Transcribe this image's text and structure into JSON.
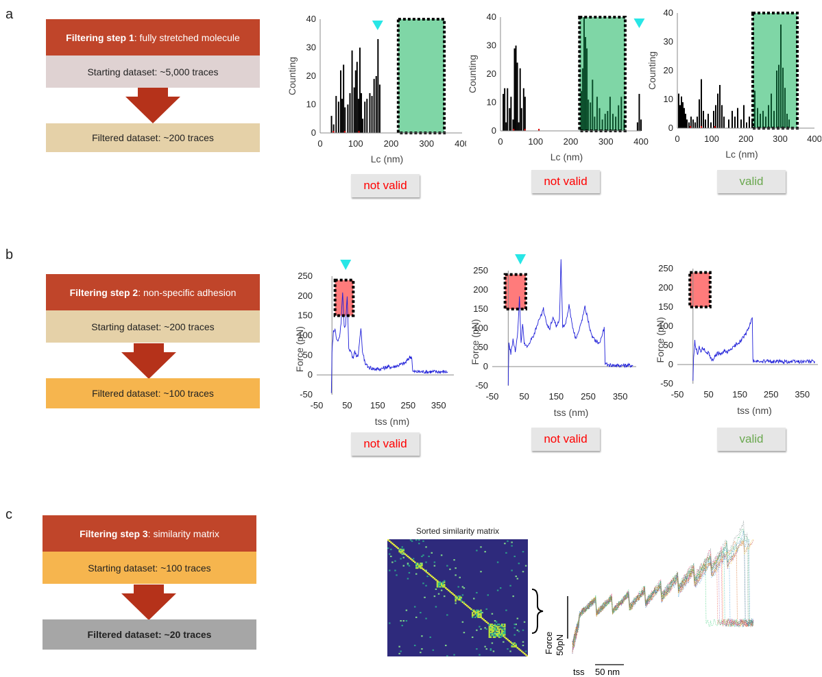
{
  "panels": {
    "a": "a",
    "b": "b",
    "c": "c"
  },
  "step1": {
    "title_bold": "Filtering step 1",
    "title_rest": ": fully stretched molecule",
    "starting": "Starting dataset: ~5,000 traces",
    "filtered": "Filtered dataset: ~200 traces"
  },
  "step2": {
    "title_bold": "Filtering step 2",
    "title_rest": ": non-specific adhesion",
    "starting": "Starting dataset: ~200 traces",
    "filtered": "Filtered dataset: ~100 traces"
  },
  "step3": {
    "title_bold": "Filtering step 3",
    "title_rest": ": similarity matrix",
    "starting": "Starting dataset: ~100 traces",
    "filtered": "Filtered dataset: ~20 traces"
  },
  "verdicts": {
    "a1": "not valid",
    "a2": "not valid",
    "a3": "valid",
    "b1": "not valid",
    "b2": "not valid",
    "b3": "valid"
  },
  "colors": {
    "title_box": "#c0452a",
    "step1_start": "#dfd2d2",
    "step1_filtered": "#e5d1a8",
    "step2_start": "#e5d1a8",
    "step2_filtered": "#f6b54e",
    "step3_start": "#f6b54e",
    "step3_filtered": "#a6a6a6",
    "arrow": "#b5321a",
    "valid": "#6aa84f",
    "not_valid": "#ff0000",
    "green_window": "#7fd6a6",
    "red_window": "#ff7b7b",
    "marker": "#28e6e6",
    "trace": "#1d1dd8"
  },
  "hist_axes": {
    "xlabel": "Lc (nm)",
    "ylabel": "Counting",
    "yticks": [
      "0",
      "10",
      "20",
      "30",
      "40"
    ],
    "xticks": [
      "0",
      "100",
      "200",
      "300",
      "400"
    ]
  },
  "force_axes": {
    "xlabel": "tss (nm)",
    "ylabel": "Force (pN)",
    "yticks": [
      "-50",
      "0",
      "50",
      "100",
      "150",
      "200",
      "250"
    ],
    "xticks": [
      "-50",
      "50",
      "150",
      "250",
      "350"
    ]
  },
  "matrix": {
    "title": "Sorted similarity matrix"
  },
  "overlay": {
    "force_label": "Force",
    "force_scale": "50pN",
    "tss_label": "tss",
    "tss_scale": "50 nm"
  },
  "chart_data": [
    {
      "type": "bar",
      "id": "a1",
      "xlabel": "Lc (nm)",
      "ylabel": "Counting",
      "xlim": [
        0,
        400
      ],
      "ylim": [
        0,
        40
      ],
      "highlight_window": [
        220,
        350
      ],
      "marker_x": 162,
      "verdict": "not valid",
      "x": [
        32,
        38,
        45,
        52,
        58,
        62,
        66,
        70,
        78,
        84,
        90,
        96,
        100,
        104,
        108,
        112,
        116,
        120,
        126,
        132,
        140,
        146,
        152,
        158,
        163,
        168
      ],
      "values": [
        6,
        3,
        13,
        11,
        22,
        12,
        24,
        9,
        10,
        14,
        29,
        16,
        22,
        25,
        12,
        30,
        14,
        5,
        11,
        12,
        14,
        13,
        19,
        20,
        33,
        17
      ]
    },
    {
      "type": "bar",
      "id": "a2",
      "xlabel": "Lc (nm)",
      "ylabel": "Counting",
      "xlim": [
        0,
        400
      ],
      "ylim": [
        0,
        40
      ],
      "highlight_window": [
        225,
        355
      ],
      "marker_x": 395,
      "verdict": "not valid",
      "x": [
        8,
        12,
        16,
        20,
        26,
        30,
        36,
        40,
        44,
        48,
        52,
        56,
        60,
        66,
        70,
        230,
        234,
        238,
        242,
        246,
        250,
        256,
        262,
        268,
        275,
        282,
        290,
        298,
        305,
        312,
        320,
        328,
        336,
        344,
        352,
        390,
        395,
        400
      ],
      "values": [
        13,
        15,
        3,
        15,
        8,
        12,
        4,
        29,
        30,
        24,
        3,
        22,
        8,
        15,
        12,
        14,
        22,
        40,
        33,
        29,
        11,
        10,
        18,
        5,
        12,
        8,
        4,
        6,
        7,
        12,
        6,
        5,
        9,
        12,
        4,
        3,
        13,
        4
      ]
    },
    {
      "type": "bar",
      "id": "a3",
      "xlabel": "Lc (nm)",
      "ylabel": "Counting",
      "xlim": [
        0,
        400
      ],
      "ylim": [
        0,
        40
      ],
      "highlight_window": [
        220,
        350
      ],
      "verdict": "valid",
      "x": [
        4,
        8,
        12,
        16,
        20,
        24,
        28,
        34,
        40,
        46,
        52,
        58,
        64,
        70,
        76,
        82,
        90,
        98,
        106,
        112,
        118,
        124,
        130,
        136,
        150,
        160,
        168,
        176,
        186,
        194,
        202,
        210,
        218,
        226,
        234,
        242,
        250,
        258,
        266,
        274,
        282,
        290,
        296,
        302,
        308,
        314,
        320,
        326
      ],
      "values": [
        12,
        8,
        11,
        9,
        7,
        5,
        3,
        2,
        4,
        3,
        2,
        4,
        10,
        17,
        6,
        3,
        5,
        2,
        6,
        8,
        12,
        15,
        8,
        4,
        3,
        6,
        4,
        7,
        3,
        8,
        2,
        4,
        3,
        13,
        7,
        5,
        6,
        4,
        8,
        12,
        6,
        20,
        22,
        36,
        21,
        14,
        5,
        3
      ]
    },
    {
      "type": "line",
      "id": "b1",
      "xlabel": "tss (nm)",
      "ylabel": "Force (pN)",
      "xlim": [
        -50,
        400
      ],
      "ylim": [
        -50,
        250
      ],
      "highlight_window": {
        "x": [
          10,
          70
        ],
        "y": [
          150,
          240
        ]
      },
      "marker_x": 45,
      "verdict": "not valid",
      "x": [
        -2,
        0,
        5,
        10,
        15,
        20,
        25,
        30,
        35,
        40,
        45,
        50,
        55,
        60,
        65,
        70,
        75,
        80,
        85,
        90,
        95,
        100,
        110,
        120,
        140,
        160,
        180,
        200,
        220,
        240,
        255,
        262,
        265,
        270,
        290,
        320,
        350,
        380
      ],
      "values": [
        -45,
        60,
        110,
        120,
        90,
        85,
        95,
        135,
        210,
        120,
        130,
        200,
        70,
        60,
        50,
        40,
        60,
        50,
        45,
        80,
        120,
        60,
        25,
        20,
        15,
        15,
        20,
        20,
        25,
        30,
        45,
        45,
        8,
        8,
        8,
        8,
        8,
        8
      ]
    },
    {
      "type": "line",
      "id": "b2",
      "xlabel": "tss (nm)",
      "ylabel": "Force (pN)",
      "xlim": [
        -50,
        400
      ],
      "ylim": [
        -50,
        250
      ],
      "highlight_window": {
        "x": [
          -10,
          55
        ],
        "y": [
          150,
          240
        ]
      },
      "marker_x": 38,
      "verdict": "not valid",
      "x": [
        0,
        2,
        8,
        15,
        22,
        30,
        35,
        40,
        45,
        50,
        60,
        70,
        80,
        90,
        100,
        110,
        120,
        130,
        140,
        150,
        160,
        165,
        170,
        180,
        190,
        200,
        210,
        220,
        230,
        240,
        250,
        260,
        270,
        285,
        300,
        303,
        310,
        340,
        370,
        390
      ],
      "values": [
        -45,
        60,
        35,
        70,
        40,
        90,
        185,
        60,
        110,
        60,
        50,
        70,
        80,
        110,
        125,
        150,
        110,
        100,
        130,
        105,
        120,
        280,
        100,
        115,
        160,
        110,
        75,
        90,
        120,
        155,
        120,
        80,
        70,
        60,
        100,
        5,
        5,
        3,
        3,
        3
      ]
    },
    {
      "type": "line",
      "id": "b3",
      "xlabel": "tss (nm)",
      "ylabel": "Force (pN)",
      "xlim": [
        -50,
        400
      ],
      "ylim": [
        -50,
        250
      ],
      "highlight_window": {
        "x": [
          -10,
          55
        ],
        "y": [
          150,
          240
        ]
      },
      "verdict": "valid",
      "x": [
        0,
        2,
        6,
        10,
        15,
        20,
        25,
        30,
        35,
        40,
        50,
        60,
        70,
        80,
        90,
        100,
        110,
        120,
        130,
        140,
        150,
        160,
        170,
        180,
        190,
        192,
        200,
        240,
        280,
        320,
        360,
        390
      ],
      "values": [
        -45,
        20,
        60,
        40,
        30,
        50,
        30,
        45,
        40,
        35,
        30,
        10,
        20,
        30,
        25,
        35,
        30,
        40,
        45,
        55,
        60,
        70,
        80,
        100,
        120,
        8,
        8,
        8,
        8,
        8,
        8,
        8
      ]
    }
  ]
}
